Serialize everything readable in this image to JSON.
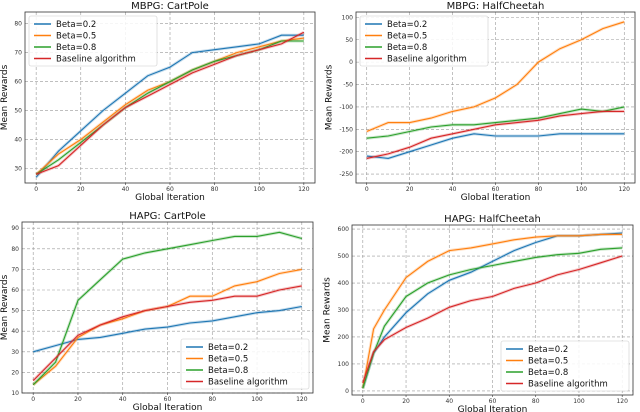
{
  "colors": {
    "Beta=0.2": "#1f77b4",
    "Beta=0.5": "#ff7f0e",
    "Beta=0.8": "#2ca02c",
    "Baseline algorithm": "#d62728"
  },
  "chart_data": [
    {
      "type": "line",
      "title": "MBPG: CartPole",
      "xlabel": "Global Iteration",
      "ylabel": "Mean Rewards",
      "xlim": [
        -5,
        125
      ],
      "ylim": [
        25,
        84
      ],
      "xticks": [
        0,
        20,
        40,
        60,
        80,
        100,
        120
      ],
      "yticks": [
        30,
        40,
        50,
        60,
        70,
        80
      ],
      "grid": true,
      "legend": "upper-left",
      "x": [
        0,
        10,
        20,
        30,
        40,
        50,
        60,
        70,
        80,
        90,
        100,
        110,
        120
      ],
      "series": [
        {
          "name": "Beta=0.2",
          "values": [
            27,
            36,
            43,
            50,
            56,
            62,
            65,
            70,
            71,
            72,
            73,
            76,
            76
          ]
        },
        {
          "name": "Beta=0.5",
          "values": [
            28,
            35,
            40,
            46,
            52,
            57,
            60,
            64,
            67,
            70,
            72,
            74,
            75
          ]
        },
        {
          "name": "Beta=0.8",
          "values": [
            28,
            33,
            39,
            45,
            51,
            56,
            60,
            64,
            67,
            69,
            71,
            74,
            74
          ]
        },
        {
          "name": "Baseline algorithm",
          "values": [
            28,
            31,
            38,
            45,
            51,
            55,
            59,
            63,
            66,
            69,
            71,
            73,
            77
          ]
        }
      ]
    },
    {
      "type": "line",
      "title": "MBPG: HalfCheetah",
      "xlabel": "Global Iteration",
      "ylabel": "Mean Rewards",
      "xlim": [
        -5,
        125
      ],
      "ylim": [
        -270,
        112
      ],
      "xticks": [
        0,
        20,
        40,
        60,
        80,
        100,
        120
      ],
      "yticks": [
        -250,
        -200,
        -150,
        -100,
        -50,
        0,
        50,
        100
      ],
      "grid": true,
      "legend": "upper-left",
      "x": [
        0,
        10,
        20,
        30,
        40,
        50,
        60,
        70,
        80,
        90,
        100,
        110,
        120
      ],
      "series": [
        {
          "name": "Beta=0.2",
          "values": [
            -210,
            -215,
            -200,
            -185,
            -170,
            -160,
            -165,
            -165,
            -165,
            -160,
            -160,
            -160,
            -160
          ]
        },
        {
          "name": "Beta=0.5",
          "values": [
            -155,
            -135,
            -135,
            -125,
            -110,
            -100,
            -80,
            -50,
            0,
            30,
            50,
            75,
            90
          ]
        },
        {
          "name": "Beta=0.8",
          "values": [
            -170,
            -165,
            -155,
            -145,
            -140,
            -140,
            -135,
            -130,
            -125,
            -115,
            -105,
            -110,
            -100
          ]
        },
        {
          "name": "Baseline algorithm",
          "values": [
            -215,
            -205,
            -190,
            -170,
            -160,
            -150,
            -140,
            -135,
            -130,
            -120,
            -115,
            -110,
            -110
          ]
        }
      ]
    },
    {
      "type": "line",
      "title": "HAPG: CartPole",
      "xlabel": "Global Iteration",
      "ylabel": "Mean Rewards",
      "xlim": [
        -5,
        125
      ],
      "ylim": [
        10,
        93
      ],
      "xticks": [
        0,
        20,
        40,
        60,
        80,
        100,
        120
      ],
      "yticks": [
        10,
        20,
        30,
        40,
        50,
        60,
        70,
        80,
        90
      ],
      "grid": true,
      "legend": "lower-right",
      "x": [
        0,
        10,
        20,
        30,
        40,
        50,
        60,
        70,
        80,
        90,
        100,
        110,
        120
      ],
      "series": [
        {
          "name": "Beta=0.2",
          "values": [
            30,
            33,
            36,
            37,
            39,
            41,
            42,
            44,
            45,
            47,
            49,
            50,
            52
          ]
        },
        {
          "name": "Beta=0.5",
          "values": [
            14,
            23,
            37,
            43,
            46,
            50,
            52,
            57,
            57,
            62,
            64,
            68,
            70
          ]
        },
        {
          "name": "Beta=0.8",
          "values": [
            14,
            25,
            55,
            65,
            75,
            78,
            80,
            82,
            84,
            86,
            86,
            88,
            85
          ]
        },
        {
          "name": "Baseline algorithm",
          "values": [
            16,
            27,
            38,
            43,
            47,
            50,
            52,
            54,
            55,
            57,
            57,
            60,
            62
          ]
        }
      ]
    },
    {
      "type": "line",
      "title": "HAPG: HalfCheetah",
      "xlabel": "Global Iteration",
      "ylabel": "Mean Rewards",
      "xlim": [
        -5,
        125
      ],
      "ylim": [
        -15,
        615
      ],
      "xticks": [
        0,
        20,
        40,
        60,
        80,
        100,
        120
      ],
      "yticks": [
        0,
        100,
        200,
        300,
        400,
        500,
        600
      ],
      "grid": true,
      "legend": "lower-right",
      "x": [
        0,
        5,
        10,
        20,
        30,
        40,
        50,
        60,
        70,
        80,
        90,
        100,
        110,
        120
      ],
      "series": [
        {
          "name": "Beta=0.2",
          "values": [
            10,
            140,
            200,
            290,
            360,
            410,
            440,
            480,
            520,
            550,
            575,
            575,
            580,
            585
          ]
        },
        {
          "name": "Beta=0.5",
          "values": [
            10,
            230,
            300,
            420,
            480,
            520,
            530,
            545,
            560,
            570,
            575,
            575,
            580,
            580
          ]
        },
        {
          "name": "Beta=0.8",
          "values": [
            10,
            140,
            240,
            350,
            400,
            430,
            450,
            465,
            480,
            495,
            505,
            510,
            525,
            530
          ]
        },
        {
          "name": "Baseline algorithm",
          "values": [
            30,
            145,
            190,
            235,
            270,
            310,
            335,
            350,
            380,
            400,
            430,
            450,
            475,
            500
          ]
        }
      ]
    }
  ]
}
